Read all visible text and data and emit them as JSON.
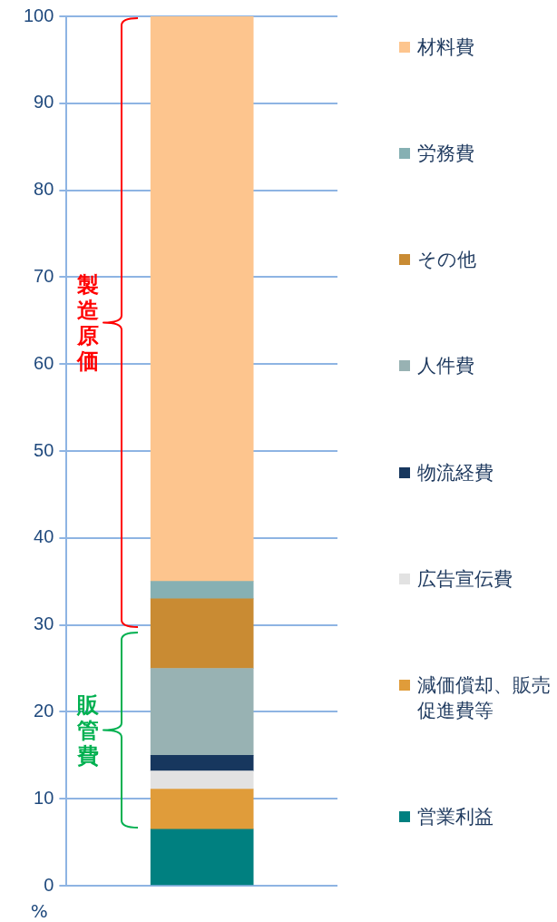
{
  "chart_data": {
    "type": "bar",
    "stacked": true,
    "categories": [
      null
    ],
    "ylabel": "%",
    "series": [
      {
        "name": "営業利益",
        "color": "#008080",
        "values": [
          6.5
        ]
      },
      {
        "name": "減価償却、販売促進費等",
        "color": "#e09c3a",
        "values": [
          4.6
        ]
      },
      {
        "name": "広告宣伝費",
        "color": "#e2e2e2",
        "values": [
          2.1
        ]
      },
      {
        "name": "物流経費",
        "color": "#17375e",
        "values": [
          1.8
        ]
      },
      {
        "name": "人件費",
        "color": "#98b2b3",
        "values": [
          10
        ]
      },
      {
        "name": "その他",
        "color": "#c98b33",
        "values": [
          8
        ]
      },
      {
        "name": "労務費",
        "color": "#86b0b3",
        "values": [
          2
        ]
      },
      {
        "name": "材料費",
        "color": "#fdc58e",
        "values": [
          65
        ]
      }
    ],
    "ylim": [
      0,
      100
    ],
    "yticks": [
      0,
      10,
      20,
      30,
      40,
      50,
      60,
      70,
      80,
      90,
      100
    ],
    "grid": "y",
    "legend": "right",
    "annotations": [
      "製造原価",
      "販管費"
    ]
  }
}
